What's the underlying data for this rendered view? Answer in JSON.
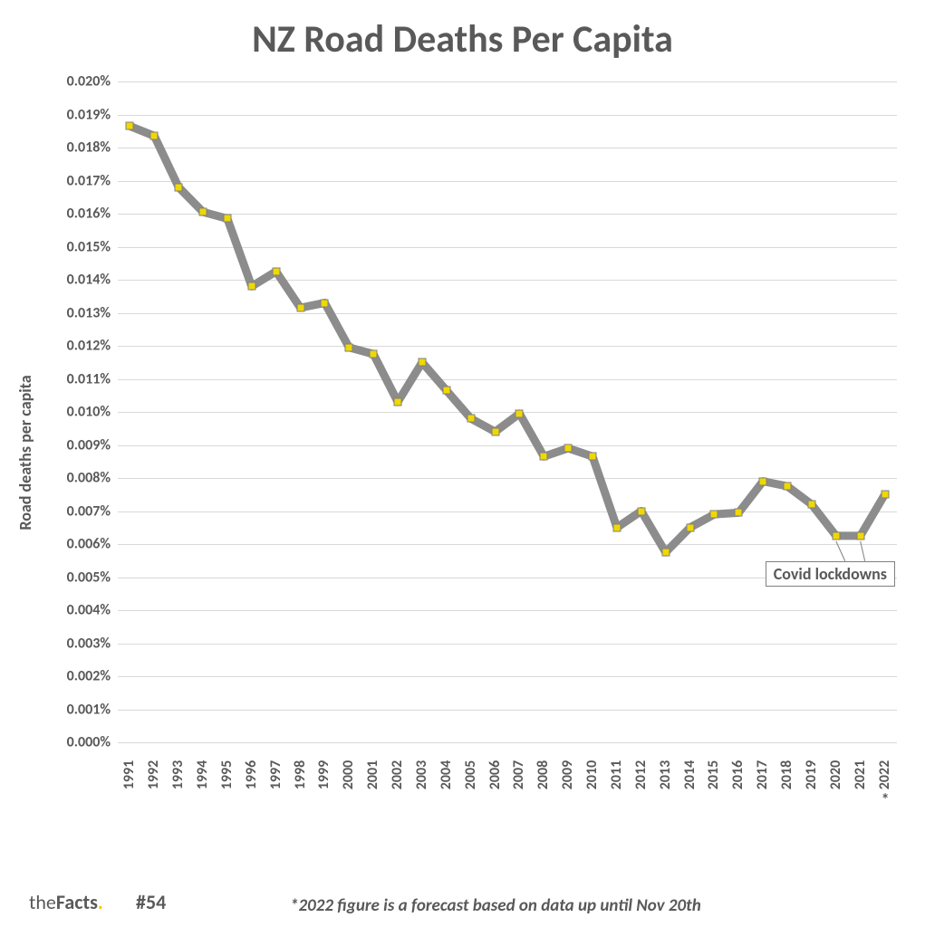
{
  "title": {
    "text": "NZ Road Deaths Per Capita",
    "fontsize": 42,
    "color": "#595959"
  },
  "ylabel": {
    "text": "Road deaths per capita",
    "fontsize": 18,
    "color": "#595959"
  },
  "chart": {
    "type": "line",
    "background_color": "#ffffff",
    "grid_color": "#d9d9d9",
    "line_color": "#8c8c8c",
    "line_width": 9,
    "marker_fill": "#f0d800",
    "marker_stroke": "#808080",
    "marker_size": 9,
    "tick_fontsize": 16,
    "tick_color": "#595959",
    "y": {
      "min": 0,
      "max": 0.02,
      "tick_step": 0.001,
      "tick_labels": [
        "0.000%",
        "0.001%",
        "0.002%",
        "0.003%",
        "0.004%",
        "0.005%",
        "0.006%",
        "0.007%",
        "0.008%",
        "0.009%",
        "0.010%",
        "0.011%",
        "0.012%",
        "0.013%",
        "0.014%",
        "0.015%",
        "0.016%",
        "0.017%",
        "0.018%",
        "0.019%",
        "0.020%"
      ]
    },
    "x": {
      "labels": [
        "1991",
        "1992",
        "1993",
        "1994",
        "1995",
        "1996",
        "1997",
        "1998",
        "1999",
        "2000",
        "2001",
        "2002",
        "2003",
        "2004",
        "2005",
        "2006",
        "2007",
        "2008",
        "2009",
        "2010",
        "2011",
        "2012",
        "2013",
        "2014",
        "2015",
        "2016",
        "2017",
        "2018",
        "2019",
        "2020",
        "2021",
        "2022"
      ]
    },
    "values": [
      0.01865,
      0.01835,
      0.0168,
      0.01605,
      0.01585,
      0.0138,
      0.01425,
      0.01315,
      0.0133,
      0.01195,
      0.01175,
      0.0103,
      0.0115,
      0.01065,
      0.0098,
      0.0094,
      0.00995,
      0.00865,
      0.0089,
      0.00865,
      0.0065,
      0.007,
      0.00575,
      0.0065,
      0.0069,
      0.00695,
      0.0079,
      0.00775,
      0.0072,
      0.00625,
      0.00625,
      0.0075
    ]
  },
  "annotation": {
    "text": "Covid lockdowns",
    "fontsize": 18,
    "box_border": "#808080",
    "box_bg": "#ffffff",
    "target_indices": [
      29,
      30
    ]
  },
  "asterisk_index": 31,
  "footnote": {
    "text": "*2022 figure is a forecast based on data up until Nov 20th",
    "fontsize": 19,
    "color": "#595959"
  },
  "brand": {
    "the": "the",
    "facts": "Facts",
    "dot_color": "#f2c400",
    "fontsize": 22,
    "number": "#54",
    "number_fontsize": 22
  }
}
